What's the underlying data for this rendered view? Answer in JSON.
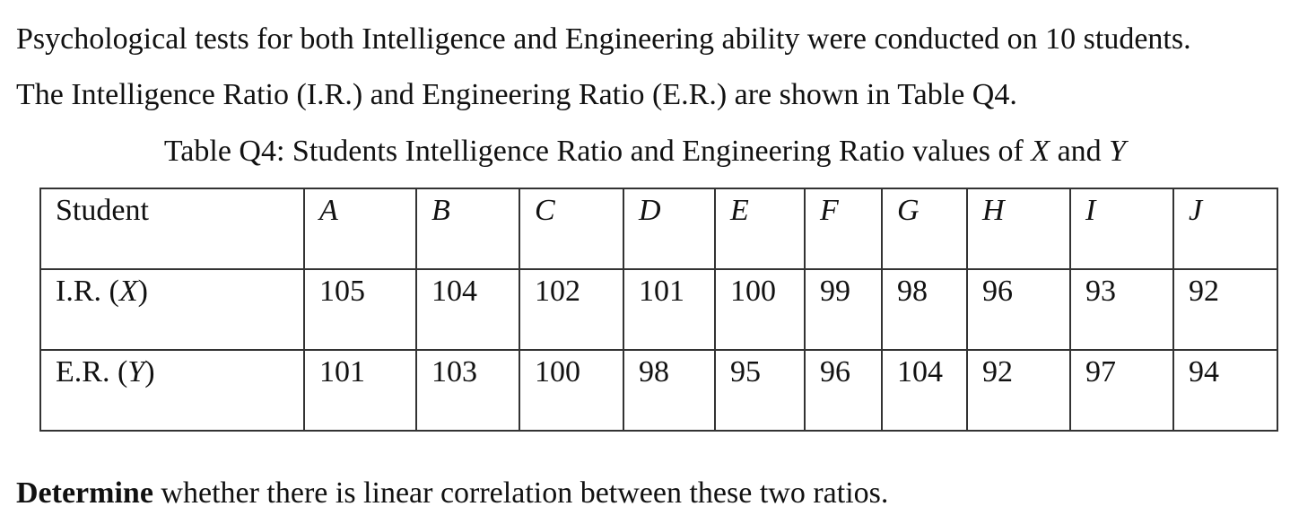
{
  "intro": {
    "line1": "Psychological tests for both Intelligence and Engineering ability were conducted on 10 students.",
    "line2": "The Intelligence Ratio (I.R.) and Engineering Ratio (E.R.) are shown in Table Q4."
  },
  "caption": {
    "prefix": "Table Q4: Students Intelligence Ratio and Engineering Ratio values of ",
    "var_x": "X",
    "and": " and ",
    "var_y": "Y"
  },
  "table": {
    "header_label": "Student",
    "students": [
      "A",
      "B",
      "C",
      "D",
      "E",
      "F",
      "G",
      "H",
      "I",
      "J"
    ],
    "row_ir": {
      "label_prefix": "I.R. (",
      "label_var": "X",
      "label_suffix": ")",
      "values": [
        "105",
        "104",
        "102",
        "101",
        "100",
        "99",
        "98",
        "96",
        "93",
        "92"
      ]
    },
    "row_er": {
      "label_prefix": "E.R. (",
      "label_var": "Y",
      "label_suffix": ")",
      "values": [
        "101",
        "103",
        "100",
        "98",
        "95",
        "96",
        "104",
        "92",
        "97",
        "94"
      ]
    }
  },
  "question": {
    "bold": "Determine",
    "rest": " whether there is linear correlation between these two ratios."
  }
}
